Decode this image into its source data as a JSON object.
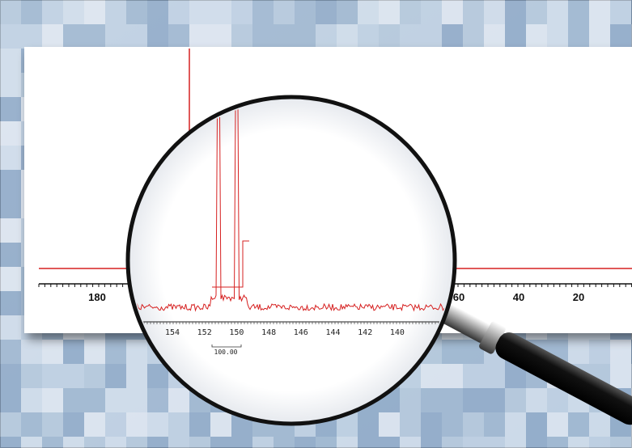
{
  "spectrum": {
    "axis_labels": [
      "180",
      "60",
      "40",
      "20"
    ]
  },
  "magnified": {
    "axis_labels": [
      "154",
      "152",
      "150",
      "148",
      "146",
      "144",
      "142",
      "140"
    ],
    "integral_label": "100.00"
  }
}
